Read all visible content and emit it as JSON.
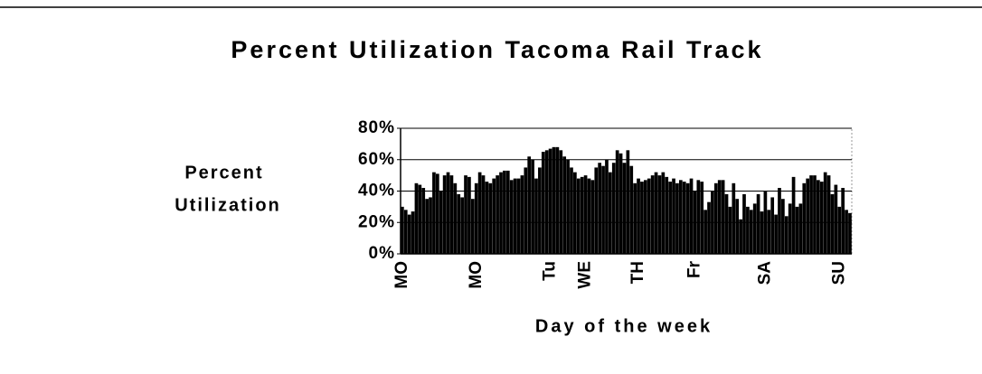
{
  "chart_data": {
    "type": "bar",
    "title": "Percent Utilization Tacoma Rail Track",
    "y_label_lines": [
      "Percent",
      "Utilization"
    ],
    "x_label": "Day of the week",
    "color": "#000000",
    "grid": true,
    "ylim": [
      0,
      80
    ],
    "yticks": [
      {
        "value": 0,
        "label": "0%"
      },
      {
        "value": 20,
        "label": "20%"
      },
      {
        "value": 40,
        "label": "40%"
      },
      {
        "value": 60,
        "label": "60%"
      },
      {
        "value": 80,
        "label": "80%"
      }
    ],
    "categories": [
      "MO",
      null,
      null,
      null,
      null,
      null,
      null,
      null,
      null,
      null,
      null,
      null,
      null,
      null,
      null,
      null,
      null,
      null,
      null,
      null,
      null,
      "MO",
      null,
      null,
      null,
      null,
      null,
      null,
      null,
      null,
      null,
      null,
      null,
      null,
      null,
      null,
      null,
      null,
      null,
      null,
      null,
      null,
      "Tu",
      null,
      null,
      null,
      null,
      null,
      null,
      null,
      null,
      null,
      "WE",
      null,
      null,
      null,
      null,
      null,
      null,
      null,
      null,
      null,
      null,
      null,
      null,
      null,
      null,
      "TH",
      null,
      null,
      null,
      null,
      null,
      null,
      null,
      null,
      null,
      null,
      null,
      null,
      null,
      null,
      null,
      "Fr",
      null,
      null,
      null,
      null,
      null,
      null,
      null,
      null,
      null,
      null,
      null,
      null,
      null,
      null,
      null,
      null,
      null,
      null,
      null,
      "SA",
      null,
      null,
      null,
      null,
      null,
      null,
      null,
      null,
      null,
      null,
      null,
      null,
      null,
      null,
      null,
      null,
      null,
      null,
      null,
      null,
      "SU",
      null,
      null,
      null
    ],
    "values": [
      30,
      28,
      25,
      27,
      45,
      44,
      42,
      35,
      36,
      52,
      51,
      40,
      50,
      52,
      50,
      45,
      38,
      36,
      50,
      49,
      35,
      45,
      52,
      50,
      46,
      45,
      48,
      50,
      52,
      53,
      53,
      47,
      48,
      48,
      50,
      55,
      62,
      60,
      48,
      55,
      65,
      66,
      67,
      68,
      68,
      66,
      62,
      60,
      55,
      52,
      48,
      49,
      50,
      48,
      47,
      55,
      58,
      56,
      60,
      52,
      58,
      66,
      64,
      58,
      66,
      56,
      45,
      48,
      46,
      47,
      48,
      50,
      52,
      50,
      52,
      49,
      46,
      48,
      45,
      47,
      46,
      45,
      48,
      40,
      47,
      46,
      28,
      33,
      40,
      45,
      47,
      47,
      38,
      30,
      45,
      35,
      22,
      38,
      30,
      28,
      32,
      38,
      27,
      40,
      28,
      36,
      25,
      42,
      35,
      24,
      32,
      49,
      30,
      32,
      45,
      48,
      50,
      50,
      47,
      46,
      52,
      50,
      38,
      44,
      30,
      42,
      28,
      26
    ]
  }
}
